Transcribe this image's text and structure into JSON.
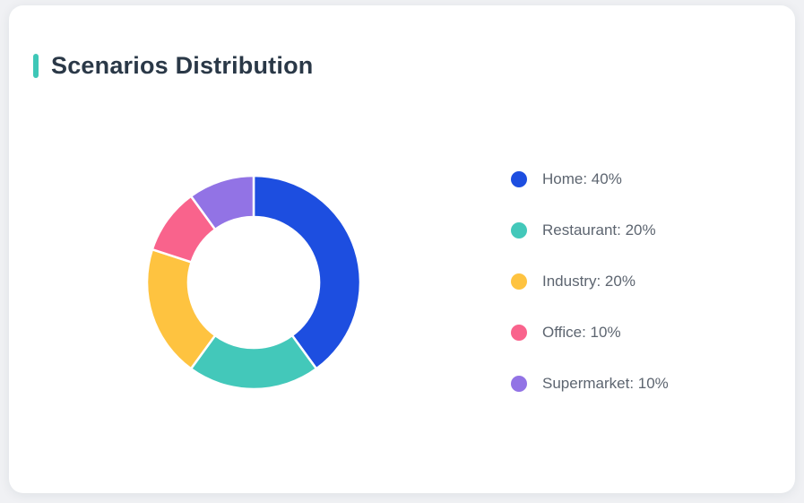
{
  "card": {
    "title": "Scenarios Distribution",
    "accent_color": "#3ec7b7"
  },
  "chart_data": {
    "type": "pie",
    "subtype": "donut",
    "title": "Scenarios Distribution",
    "categories": [
      "Home",
      "Restaurant",
      "Industry",
      "Office",
      "Supermarket"
    ],
    "values": [
      40,
      20,
      20,
      10,
      10
    ],
    "unit": "%",
    "colors": [
      "#1d4ee0",
      "#43c8ba",
      "#fec340",
      "#f9638c",
      "#9273e5"
    ],
    "legend_labels": [
      "Home: 40%",
      "Restaurant: 20%",
      "Industry: 20%",
      "Office: 10%",
      "Supermarket: 10%"
    ],
    "legend_position": "right",
    "start_angle_deg": 0,
    "direction": "clockwise",
    "inner_radius_ratio": 0.61,
    "segment_gap_color": "#ffffff"
  }
}
